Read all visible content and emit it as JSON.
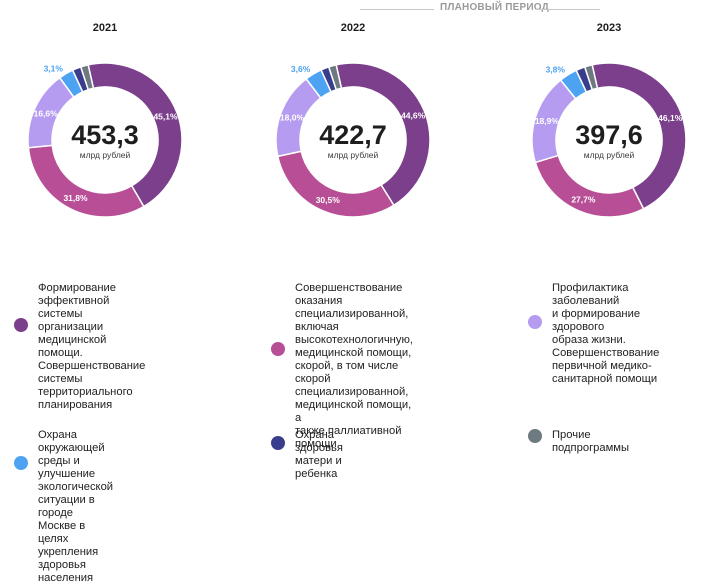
{
  "planned_period_label": "ПЛАНОВЫЙ ПЕРИОД",
  "unit_label": "млрд рублей",
  "colors": {
    "efficiency": "#7b3f8c",
    "specialized": "#b84f96",
    "prevention": "#b59cf0",
    "environment": "#4da3f2",
    "maternity": "#3a3d8c",
    "other": "#6d7a80"
  },
  "chart_data": [
    {
      "type": "pie",
      "title": "2021",
      "total": "453,3",
      "slices": [
        {
          "key": "efficiency",
          "value": 45.1,
          "label": "45,1%"
        },
        {
          "key": "specialized",
          "value": 31.8,
          "label": "31,8%"
        },
        {
          "key": "prevention",
          "value": 16.6,
          "label": "16,6%"
        },
        {
          "key": "environment",
          "value": 3.1,
          "label": "3,1%"
        },
        {
          "key": "maternity",
          "value": 1.8,
          "label": ""
        },
        {
          "key": "other",
          "value": 1.6,
          "label": ""
        }
      ]
    },
    {
      "type": "pie",
      "title": "2022",
      "total": "422,7",
      "slices": [
        {
          "key": "efficiency",
          "value": 44.6,
          "label": "44,6%"
        },
        {
          "key": "specialized",
          "value": 30.5,
          "label": "30,5%"
        },
        {
          "key": "prevention",
          "value": 18.0,
          "label": "18,0%"
        },
        {
          "key": "environment",
          "value": 3.6,
          "label": "3,6%"
        },
        {
          "key": "maternity",
          "value": 1.7,
          "label": ""
        },
        {
          "key": "other",
          "value": 1.6,
          "label": ""
        }
      ]
    },
    {
      "type": "pie",
      "title": "2023",
      "total": "397,6",
      "slices": [
        {
          "key": "efficiency",
          "value": 46.1,
          "label": "46,1%"
        },
        {
          "key": "specialized",
          "value": 27.7,
          "label": "27,7%"
        },
        {
          "key": "prevention",
          "value": 18.9,
          "label": "18,9%"
        },
        {
          "key": "environment",
          "value": 3.8,
          "label": "3,8%"
        },
        {
          "key": "maternity",
          "value": 1.9,
          "label": ""
        },
        {
          "key": "other",
          "value": 1.6,
          "label": ""
        }
      ]
    }
  ],
  "legend": [
    {
      "key": "efficiency",
      "label": "Формирование эффективной\nсистемы организации\nмедицинской помощи.\nСовершенствование системы\nтерриториального\nпланирования"
    },
    {
      "key": "specialized",
      "label": "Совершенствование\nоказания\nспециализированной,\nвключая\nвысокотехнологичную,\nмедицинской помощи,\nскорой, в том числе скорой\nспециализированной,\nмедицинской помощи, а\nтакже паллиативной помощи"
    },
    {
      "key": "prevention",
      "label": "Профилактика заболеваний\nи формирование здорового\nобраза жизни.\nСовершенствование\nпервичной медико-\nсанитарной помощи"
    },
    {
      "key": "environment",
      "label": "Охрана окружающей среды и\nулучшение экологической\nситуации в городе Москве в\nцелях укрепления здоровья\nнаселения"
    },
    {
      "key": "maternity",
      "label": "Охрана здоровья матери и\nребенка"
    },
    {
      "key": "other",
      "label": "Прочие подпрограммы"
    }
  ]
}
